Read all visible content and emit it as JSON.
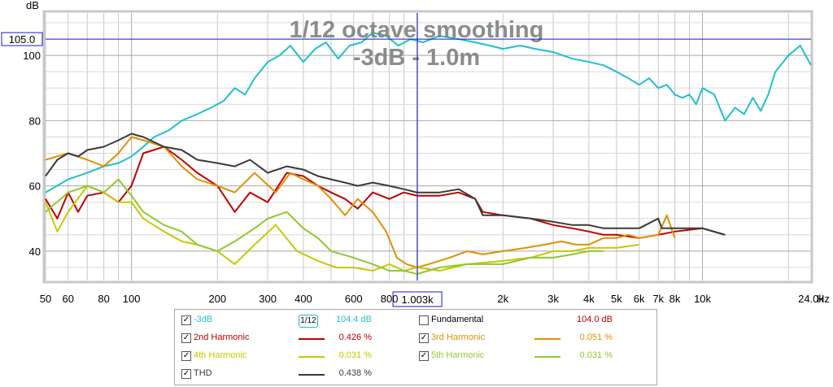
{
  "chart_data": {
    "type": "line",
    "title": "1/12 octave smoothing",
    "subtitle": "-3dB - 1.0m",
    "ylabel": "dB",
    "xlabel": "Hz",
    "x_scale": "log",
    "xlim": [
      50,
      24000
    ],
    "ylim": [
      31,
      113
    ],
    "grid": true,
    "x_tick_labels": [
      "50",
      "60",
      "80",
      "100",
      "200",
      "300",
      "400",
      "600",
      "800",
      "2k",
      "3k",
      "4k",
      "5k",
      "6k",
      "7k",
      "8k",
      "10k",
      "24.0k"
    ],
    "y_tick_labels": [
      "40",
      "60",
      "80",
      "100"
    ],
    "y_ticks": [
      40,
      60,
      80,
      100
    ],
    "cursor": {
      "x": 1003,
      "y": 105.0,
      "x_label": "1.003k",
      "y_label": "105.0"
    },
    "series": [
      {
        "name": "-3dB",
        "color": "#20c0cc",
        "x": [
          50,
          60,
          70,
          80,
          90,
          100,
          110,
          120,
          135,
          150,
          170,
          190,
          210,
          230,
          250,
          270,
          300,
          330,
          360,
          400,
          440,
          480,
          530,
          580,
          640,
          700,
          780,
          860,
          950,
          1050,
          1200,
          1400,
          1600,
          1800,
          2000,
          2300,
          2600,
          3000,
          3500,
          4000,
          4500,
          5000,
          5500,
          6000,
          6500,
          7000,
          7500,
          8000,
          8500,
          9000,
          9500,
          10000,
          11000,
          12000,
          13000,
          14000,
          15000,
          16000,
          17000,
          18000,
          20000,
          22000,
          24000
        ],
        "y": [
          58,
          62,
          64,
          66,
          67,
          69,
          72,
          75,
          77,
          80,
          82,
          84,
          86,
          90,
          88,
          93,
          98,
          100,
          103,
          98,
          102,
          104,
          99,
          103,
          104,
          107,
          106,
          103,
          105,
          104,
          106,
          105,
          104,
          103,
          102,
          103,
          102,
          101,
          99,
          98,
          97,
          95,
          93,
          91,
          93,
          90,
          91,
          88,
          87,
          88,
          85,
          90,
          88,
          80,
          84,
          82,
          87,
          83,
          88,
          95,
          100,
          103,
          97
        ]
      },
      {
        "name": "2nd Harmonic",
        "color": "#c00000",
        "x": [
          50,
          55,
          60,
          65,
          70,
          80,
          90,
          100,
          110,
          130,
          150,
          170,
          200,
          230,
          260,
          300,
          350,
          400,
          450,
          500,
          560,
          620,
          700,
          800,
          900,
          1000,
          1200,
          1400,
          1600,
          1700,
          2000,
          2500,
          3000,
          3500,
          4000,
          4500,
          5000,
          6000,
          7000,
          8000,
          10000,
          12000
        ],
        "y": [
          56,
          50,
          58,
          52,
          57,
          58,
          55,
          60,
          70,
          72,
          68,
          64,
          60,
          52,
          58,
          55,
          64,
          63,
          60,
          58,
          56,
          53,
          58,
          56,
          58,
          57,
          57,
          58,
          56,
          52,
          51,
          50,
          48,
          47,
          46,
          45,
          45,
          44,
          45,
          46,
          47,
          45
        ]
      },
      {
        "name": "3rd Harmonic",
        "color": "#e09000",
        "x": [
          50,
          60,
          70,
          80,
          90,
          100,
          110,
          130,
          150,
          170,
          200,
          230,
          270,
          320,
          360,
          400,
          450,
          500,
          560,
          620,
          700,
          780,
          850,
          920,
          1000,
          1100,
          1300,
          1500,
          1700,
          2000,
          2400,
          2800,
          3200,
          3600,
          4000,
          4500,
          5000,
          5500,
          6000,
          7000,
          7500,
          8000
        ],
        "y": [
          68,
          70,
          68,
          66,
          70,
          75,
          74,
          72,
          66,
          62,
          60,
          58,
          64,
          58,
          64,
          62,
          60,
          56,
          51,
          56,
          52,
          46,
          38,
          36,
          35,
          36,
          38,
          40,
          39,
          40,
          41,
          42,
          43,
          42,
          42,
          44,
          44,
          45,
          44,
          45,
          51,
          44
        ]
      },
      {
        "name": "4th Harmonic",
        "color": "#c8c800",
        "x": [
          50,
          55,
          60,
          70,
          80,
          90,
          100,
          110,
          130,
          150,
          170,
          200,
          230,
          270,
          320,
          380,
          450,
          520,
          600,
          700,
          800,
          900,
          1000,
          1200,
          1500,
          2000,
          2500,
          3000,
          3500,
          4000,
          5000,
          6000
        ],
        "y": [
          55,
          46,
          52,
          60,
          58,
          55,
          55,
          50,
          46,
          43,
          42,
          40,
          36,
          42,
          48,
          40,
          37,
          35,
          35,
          34,
          36,
          34,
          35,
          34,
          36,
          37,
          38,
          40,
          40,
          41,
          41,
          42
        ]
      },
      {
        "name": "5th Harmonic",
        "color": "#90c830",
        "x": [
          50,
          60,
          70,
          80,
          90,
          100,
          110,
          130,
          150,
          170,
          200,
          230,
          270,
          300,
          350,
          400,
          450,
          500,
          600,
          700,
          800,
          900,
          1000,
          1200,
          1500,
          2000,
          2500,
          3000,
          3500,
          4000,
          4500
        ],
        "y": [
          52,
          58,
          60,
          58,
          62,
          57,
          52,
          48,
          46,
          42,
          40,
          43,
          47,
          50,
          52,
          47,
          44,
          40,
          38,
          36,
          34,
          34,
          33,
          35,
          36,
          36,
          38,
          38,
          39,
          40,
          40
        ]
      },
      {
        "name": "THD",
        "color": "#3a3a3a",
        "x": [
          50,
          55,
          60,
          65,
          70,
          80,
          90,
          100,
          110,
          130,
          150,
          170,
          200,
          230,
          260,
          300,
          350,
          400,
          450,
          500,
          560,
          620,
          700,
          800,
          900,
          1000,
          1200,
          1400,
          1600,
          1700,
          2000,
          2500,
          3000,
          3500,
          4000,
          4500,
          5000,
          6000,
          7000,
          7200,
          8000,
          10000,
          12000
        ],
        "y": [
          63,
          68,
          70,
          69,
          71,
          72,
          74,
          76,
          75,
          72,
          71,
          68,
          67,
          66,
          68,
          64,
          66,
          65,
          63,
          62,
          61,
          60,
          61,
          60,
          59,
          58,
          58,
          59,
          56,
          51,
          51,
          50,
          49,
          48,
          48,
          47,
          47,
          47,
          50,
          47,
          47,
          47,
          45
        ]
      }
    ]
  },
  "legend": {
    "rows": [
      {
        "name": "-3dB",
        "checked": true,
        "value": "104.4 dB",
        "badge": "1/12",
        "color": "#20c0cc"
      },
      {
        "name": "Fundamental",
        "checked": false,
        "value": "104.0 dB",
        "color": ""
      },
      {
        "name": "2nd Harmonic",
        "checked": true,
        "value": "0.426 %",
        "color": "#c00000"
      },
      {
        "name": "3rd Harmonic",
        "checked": true,
        "value": "0.051 %",
        "color": "#e09000"
      },
      {
        "name": "4th Harmonic",
        "checked": true,
        "value": "0.031 %",
        "color": "#c8c800"
      },
      {
        "name": "5th Harmonic",
        "checked": true,
        "value": "0.031 %",
        "color": "#90c830"
      },
      {
        "name": "THD",
        "checked": true,
        "value": "0.438 %",
        "color": "#3a3a3a"
      }
    ],
    "check_mark": "✓"
  }
}
